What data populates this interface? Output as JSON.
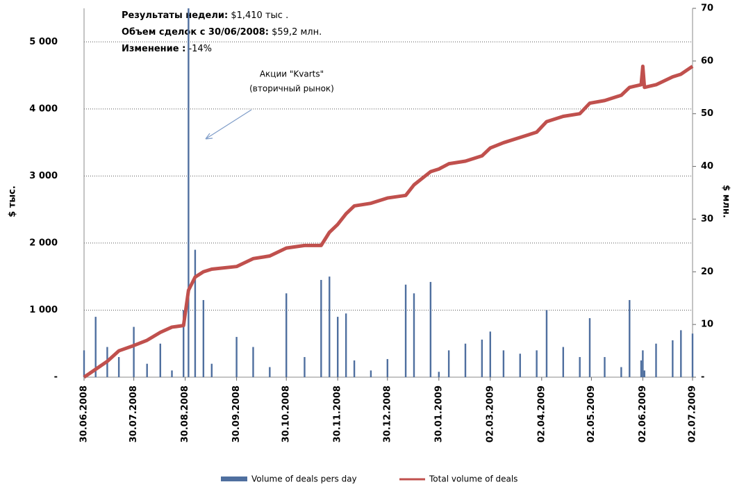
{
  "chart_data": {
    "type": "bar-line",
    "notes": [
      {
        "label": "Результаты недели:",
        "value": "$1,410 тыс ."
      },
      {
        "label": "Объем сделок с 30/06/2008:",
        "value": "$59,2 млн."
      },
      {
        "label": "Изменение :",
        "value": "-14%"
      }
    ],
    "annotation": [
      "Акции \"Kvarts\"",
      "(вторичный рынок)"
    ],
    "y_label": "$ тыс.",
    "y2_label": "$ млн.",
    "xlim": [
      "30.06.2008",
      "02.07.2009"
    ],
    "xticks": [
      "30.06.2008",
      "30.07.2008",
      "30.08.2008",
      "30.09.2008",
      "30.10.2008",
      "30.11.2008",
      "30.12.2008",
      "30.01.2009",
      "02.03.2009",
      "02.04.2009",
      "02.05.2009",
      "02.06.2009",
      "02.07.2009"
    ],
    "ylim": [
      0,
      5500
    ],
    "yticks": [
      {
        "value": 0,
        "label": "-"
      },
      {
        "value": 1000,
        "label": "1 000"
      },
      {
        "value": 2000,
        "label": "2 000"
      },
      {
        "value": 3000,
        "label": "3 000"
      },
      {
        "value": 4000,
        "label": "4 000"
      },
      {
        "value": 5000,
        "label": "5 000"
      }
    ],
    "y2lim": [
      0,
      70
    ],
    "y2ticks": [
      {
        "value": 0,
        "label": "-"
      },
      10,
      20,
      30,
      40,
      50,
      60,
      70
    ],
    "grid": true,
    "x": [
      "30.06.2008",
      "07.07.2008",
      "14.07.2008",
      "21.07.2008",
      "30.07.2008",
      "07.08.2008",
      "15.08.2008",
      "22.08.2008",
      "29.08.2008",
      "01.09.2008",
      "05.09.2008",
      "10.09.2008",
      "15.09.2008",
      "30.09.2008",
      "10.10.2008",
      "20.10.2008",
      "30.10.2008",
      "10.11.2008",
      "20.11.2008",
      "25.11.2008",
      "30.11.2008",
      "05.12.2008",
      "10.12.2008",
      "20.12.2008",
      "30.12.2008",
      "10.01.2009",
      "15.01.2009",
      "25.01.2009",
      "30.01.2009",
      "05.02.2009",
      "15.02.2009",
      "25.02.2009",
      "02.03.2009",
      "10.03.2009",
      "20.03.2009",
      "30.03.2009",
      "05.04.2009",
      "15.04.2009",
      "25.04.2009",
      "01.05.2009",
      "10.05.2009",
      "20.05.2009",
      "25.05.2009",
      "01.06.2009",
      "02.06.2009",
      "03.06.2009",
      "10.06.2009",
      "20.06.2009",
      "25.06.2009",
      "02.07.2009"
    ],
    "series": [
      {
        "name": "Volume of deals pers day",
        "color": "#4f6f9f",
        "axis": "y",
        "values": [
          400,
          900,
          450,
          300,
          750,
          200,
          500,
          100,
          1000,
          5500,
          1900,
          1150,
          200,
          600,
          450,
          150,
          1250,
          300,
          1450,
          1500,
          900,
          950,
          250,
          100,
          270,
          1380,
          1250,
          1420,
          80,
          400,
          500,
          560,
          680,
          400,
          350,
          400,
          1000,
          450,
          300,
          880,
          300,
          150,
          1150,
          250,
          400,
          100,
          500,
          550,
          700,
          650
        ]
      },
      {
        "name": "Total volume of deals",
        "color": "#c0504d",
        "axis": "y2",
        "values": [
          0,
          1.5,
          3,
          5,
          6,
          7,
          8.5,
          9.5,
          9.8,
          16.5,
          19,
          20,
          20.5,
          21,
          22.5,
          23,
          24.5,
          25,
          25,
          27.5,
          29,
          31,
          32.5,
          33,
          34,
          34.5,
          36.5,
          39,
          39.5,
          40.5,
          41,
          42,
          43.5,
          44.5,
          45.5,
          46.5,
          48.5,
          49.5,
          50,
          52,
          52.5,
          53.5,
          55,
          55.5,
          59,
          55,
          55.5,
          57,
          57.5,
          59
        ]
      }
    ]
  }
}
